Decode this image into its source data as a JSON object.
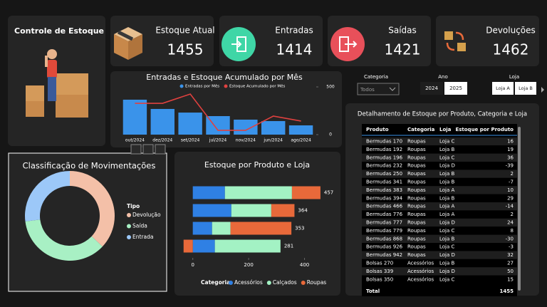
{
  "title": "Controle de Estoque",
  "cards": [
    {
      "label": "Estoque Atual",
      "value": 1455
    },
    {
      "label": "Entradas",
      "value": 1414
    },
    {
      "label": "Saídas",
      "value": 1421
    },
    {
      "label": "Devoluções",
      "value": 1462
    }
  ],
  "filters": {
    "categoria": {
      "label": "Categoria",
      "value": "Todos"
    },
    "ano": {
      "label": "Ano",
      "options": [
        "2024",
        "2025"
      ]
    },
    "loja": {
      "label": "Loja",
      "options": [
        "Loja A",
        "Loja B"
      ]
    }
  },
  "table": {
    "title": "Detalhamento de Estoque por Produto, Categoria e Loja",
    "columns": [
      "Produto",
      "Categoria",
      "Loja",
      "Estoque por Produto"
    ],
    "rows": [
      [
        "Bermudas 170",
        "Roupas",
        "Loja C",
        16
      ],
      [
        "Bermudas 192",
        "Roupas",
        "Loja B",
        19
      ],
      [
        "Bermudas 196",
        "Roupas",
        "Loja C",
        36
      ],
      [
        "Bermudas 232",
        "Roupas",
        "Loja D",
        -39
      ],
      [
        "Bermudas 250",
        "Roupas",
        "Loja B",
        2
      ],
      [
        "Bermudas 341",
        "Roupas",
        "Loja B",
        -7
      ],
      [
        "Bermudas 383",
        "Roupas",
        "Loja A",
        10
      ],
      [
        "Bermudas 394",
        "Roupas",
        "Loja B",
        29
      ],
      [
        "Bermudas 466",
        "Roupas",
        "Loja A",
        -14
      ],
      [
        "Bermudas 776",
        "Roupas",
        "Loja A",
        2
      ],
      [
        "Bermudas 777",
        "Roupas",
        "Loja D",
        24
      ],
      [
        "Bermudas 779",
        "Roupas",
        "Loja C",
        8
      ],
      [
        "Bermudas 868",
        "Roupas",
        "Loja B",
        -30
      ],
      [
        "Bermudas 926",
        "Roupas",
        "Loja C",
        -3
      ],
      [
        "Bermudas 942",
        "Roupas",
        "Loja D",
        32
      ],
      [
        "Bolsas 270",
        "Acessórios",
        "Loja B",
        27
      ],
      [
        "Bolsas 339",
        "Acessórios",
        "Loja D",
        50
      ],
      [
        "Bolsas 350",
        "Acessórios",
        "Loja C",
        15
      ]
    ],
    "total": [
      "Total",
      1455
    ]
  },
  "chart_data": [
    {
      "type": "combo",
      "title": "Entradas e Estoque Acumulado por Mês",
      "categories": [
        "out/2024",
        "dez/2024",
        "set/2024",
        "jul/2024",
        "nov/2024",
        "jun/2024",
        "ago/2024"
      ],
      "series": [
        {
          "name": "Entradas por Mês",
          "type": "bar",
          "color": "#3a93ea",
          "values": [
            366,
            269,
            231,
            194,
            157,
            142,
            97
          ]
        },
        {
          "name": "Estoque Acumulado por Mês",
          "type": "line",
          "color": "#e0413f",
          "values": [
            328,
            328,
            425,
            45,
            45,
            194,
            142
          ]
        }
      ],
      "ylim": [
        0,
        500
      ],
      "yticks": [
        0,
        500
      ]
    },
    {
      "type": "donut",
      "title": "Classificação de Movimentações",
      "legend_title": "Tipo",
      "categories": [
        "Devolução",
        "Saída",
        "Entrada"
      ],
      "colors": [
        "#f4c0a8",
        "#a8f0c4",
        "#9cc8f8"
      ],
      "values": [
        37,
        36,
        27
      ]
    },
    {
      "type": "stacked_barh",
      "title": "Estoque por Produto e Loja",
      "legend_title": "Categoria",
      "categories": [
        null,
        null,
        null,
        null
      ],
      "series": [
        {
          "name": "Acessórios",
          "color": "#2f80e4",
          "values": [
            115,
            138,
            69,
            79
          ]
        },
        {
          "name": "Calçados",
          "color": "#a3f2c4",
          "values": [
            240,
            143,
            66,
            235
          ]
        },
        {
          "name": "Roupas",
          "color": "#e8693a",
          "values": [
            102,
            83,
            218,
            -33
          ]
        }
      ],
      "total_labels": [
        457,
        364,
        353,
        281
      ],
      "xlim": [
        -40,
        470
      ],
      "xticks": [
        0,
        200,
        400
      ]
    }
  ]
}
